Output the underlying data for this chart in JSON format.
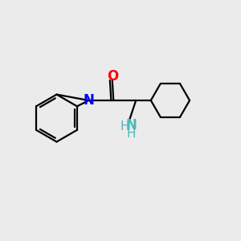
{
  "background_color": "#ebebeb",
  "bond_color": "#000000",
  "n_color": "#0000ff",
  "o_color": "#ff0000",
  "nh2_color": "#4db8b8",
  "line_width": 1.6,
  "font_size_atom": 10,
  "fig_width": 3.0,
  "fig_height": 3.0,
  "dpi": 100,
  "xlim": [
    0,
    10
  ],
  "ylim": [
    0,
    10
  ]
}
